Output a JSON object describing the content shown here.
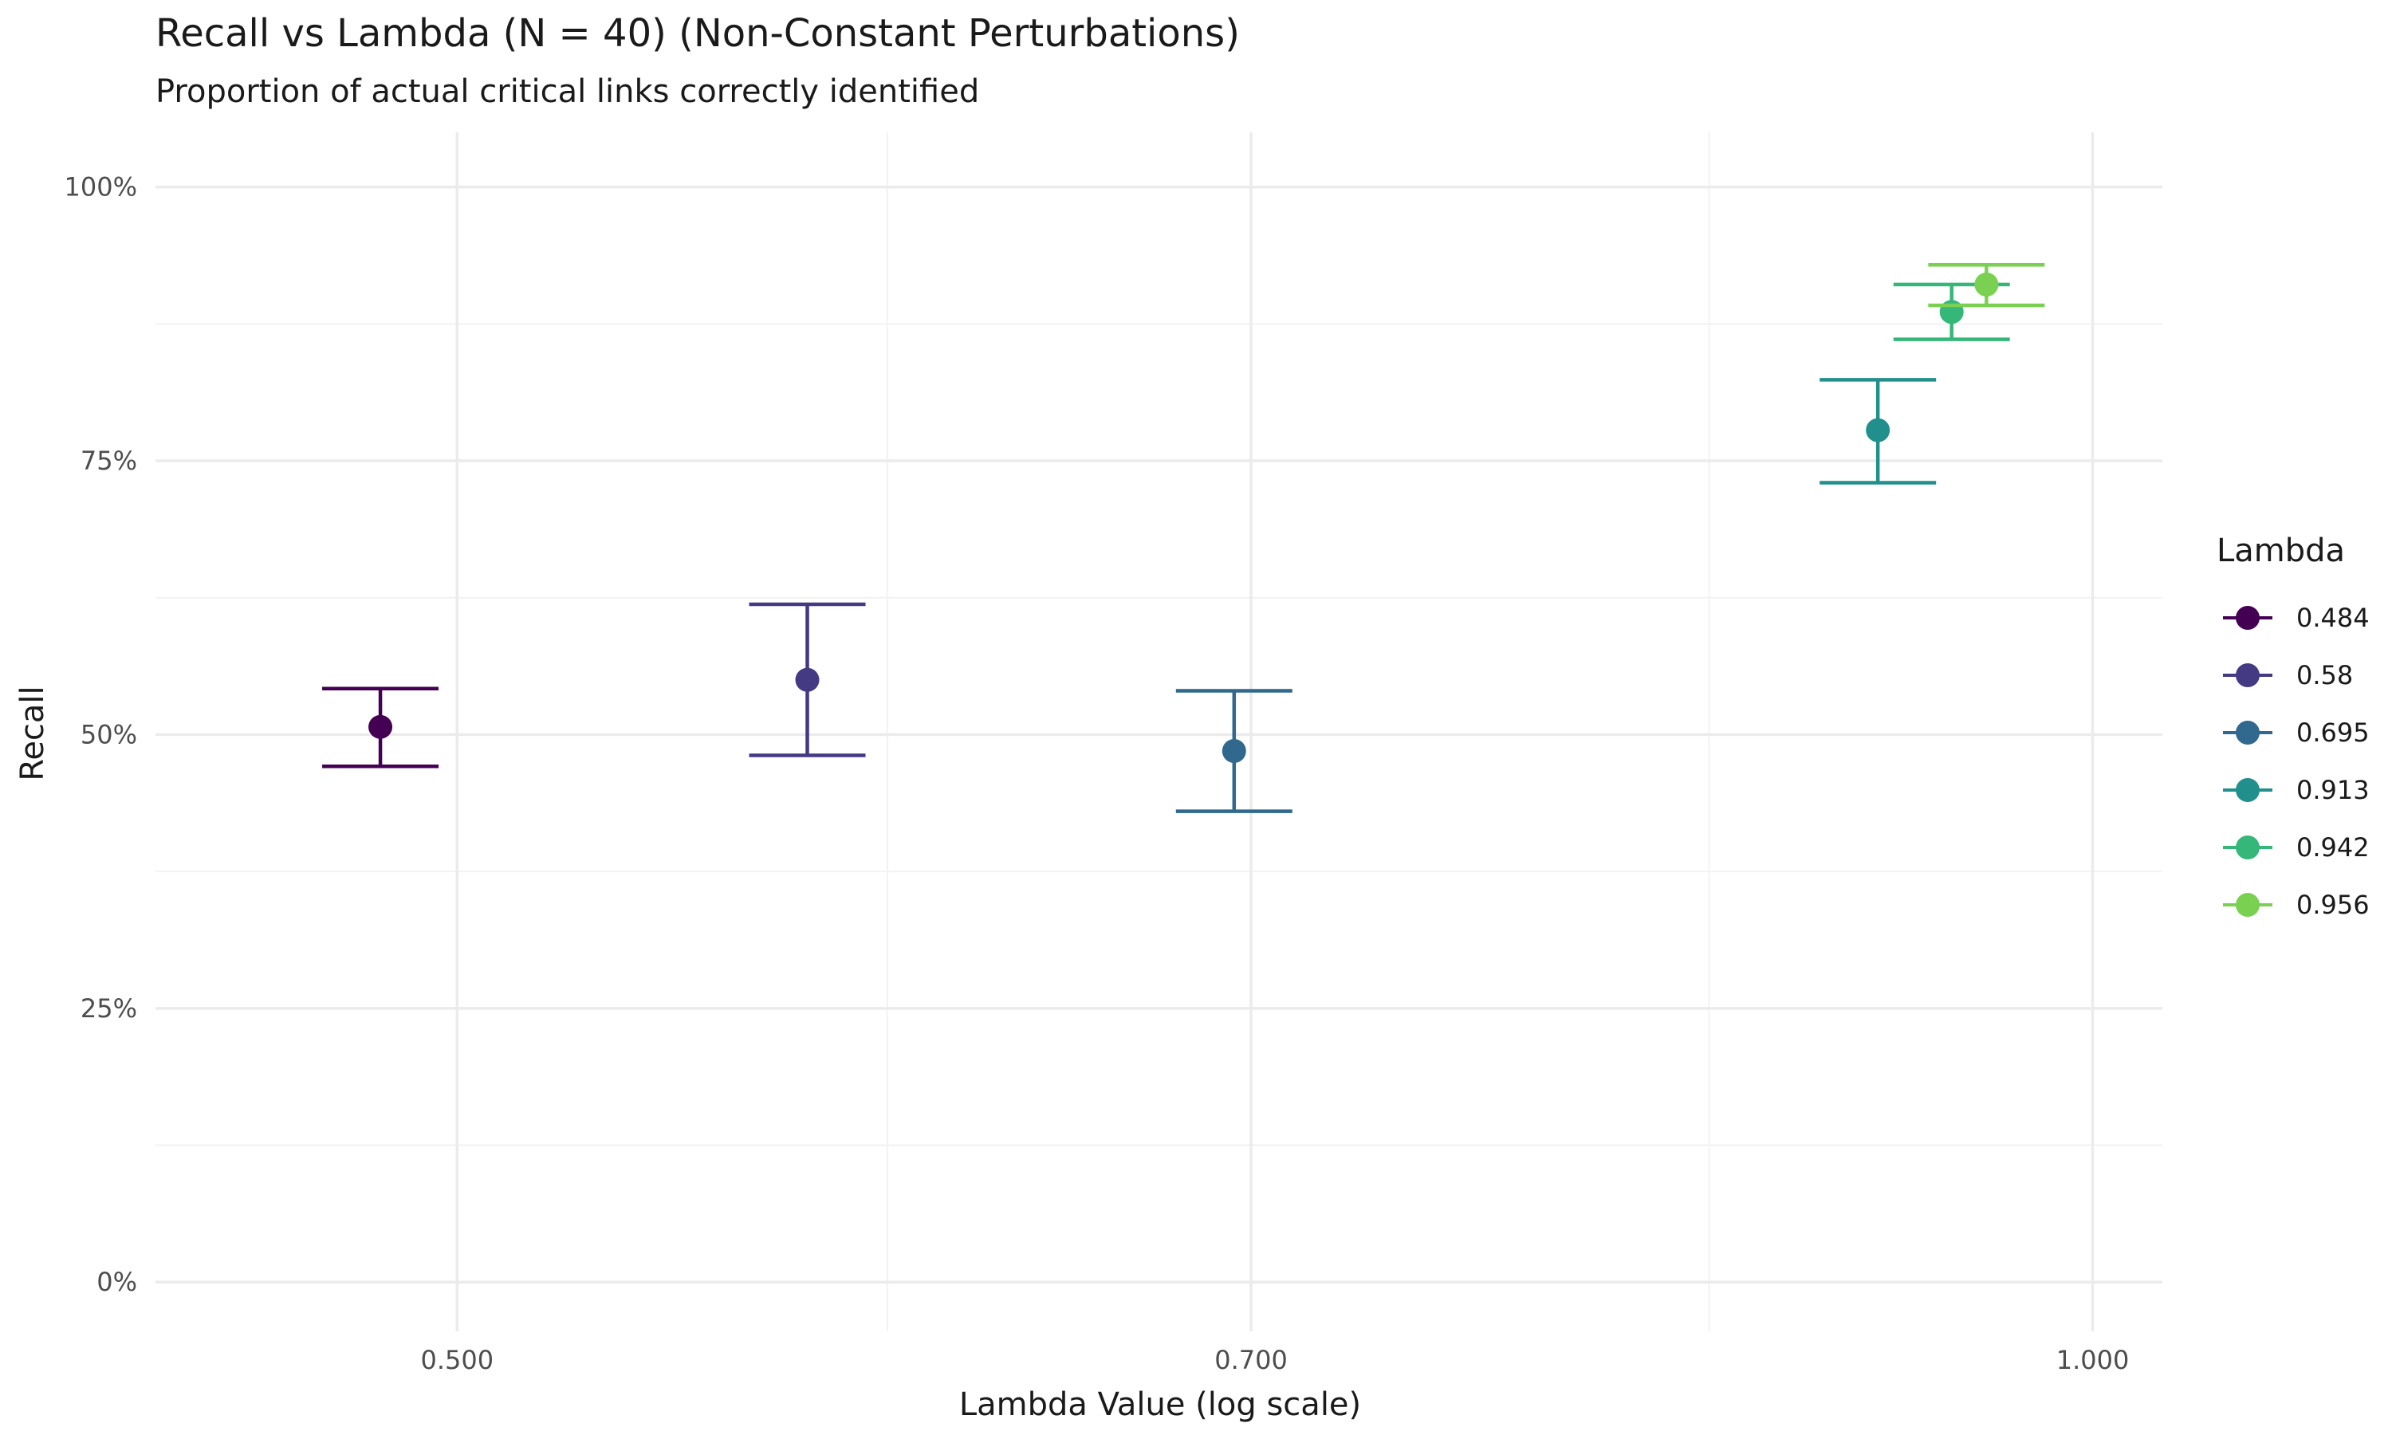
{
  "chart_data": {
    "type": "scatter",
    "title": "Recall vs Lambda (N = 40) (Non-Constant Perturbations)",
    "subtitle": "Proportion of actual critical links correctly identified",
    "xlabel": "Lambda Value (log scale)",
    "ylabel": "Recall",
    "x_scale": "log",
    "xlim": [
      0.44,
      1.03
    ],
    "ylim": [
      -0.045,
      1.05
    ],
    "x_ticks": [
      0.5,
      0.7,
      1.0
    ],
    "x_tick_labels": [
      "0.500",
      "0.700",
      "1.000"
    ],
    "x_minor_ticks": [
      0.6,
      0.85
    ],
    "y_ticks": [
      0,
      0.25,
      0.5,
      0.75,
      1.0
    ],
    "y_tick_labels": [
      "0%",
      "25%",
      "50%",
      "75%",
      "100%"
    ],
    "y_minor_ticks": [
      0.125,
      0.375,
      0.625,
      0.875
    ],
    "grid": true,
    "legend_title": "Lambda",
    "legend_position": "right",
    "points": [
      {
        "label": "0.484",
        "x": 0.484,
        "y": 0.507,
        "ymin": 0.471,
        "ymax": 0.542,
        "color": "#440154"
      },
      {
        "label": "0.58",
        "x": 0.58,
        "y": 0.55,
        "ymin": 0.481,
        "ymax": 0.619,
        "color": "#443A83"
      },
      {
        "label": "0.695",
        "x": 0.695,
        "y": 0.485,
        "ymin": 0.43,
        "ymax": 0.54,
        "color": "#31688E"
      },
      {
        "label": "0.913",
        "x": 0.913,
        "y": 0.778,
        "ymin": 0.73,
        "ymax": 0.824,
        "color": "#21908C"
      },
      {
        "label": "0.942",
        "x": 0.942,
        "y": 0.886,
        "ymin": 0.861,
        "ymax": 0.911,
        "color": "#35B779"
      },
      {
        "label": "0.956",
        "x": 0.956,
        "y": 0.911,
        "ymin": 0.892,
        "ymax": 0.929,
        "color": "#7AD151"
      }
    ]
  }
}
